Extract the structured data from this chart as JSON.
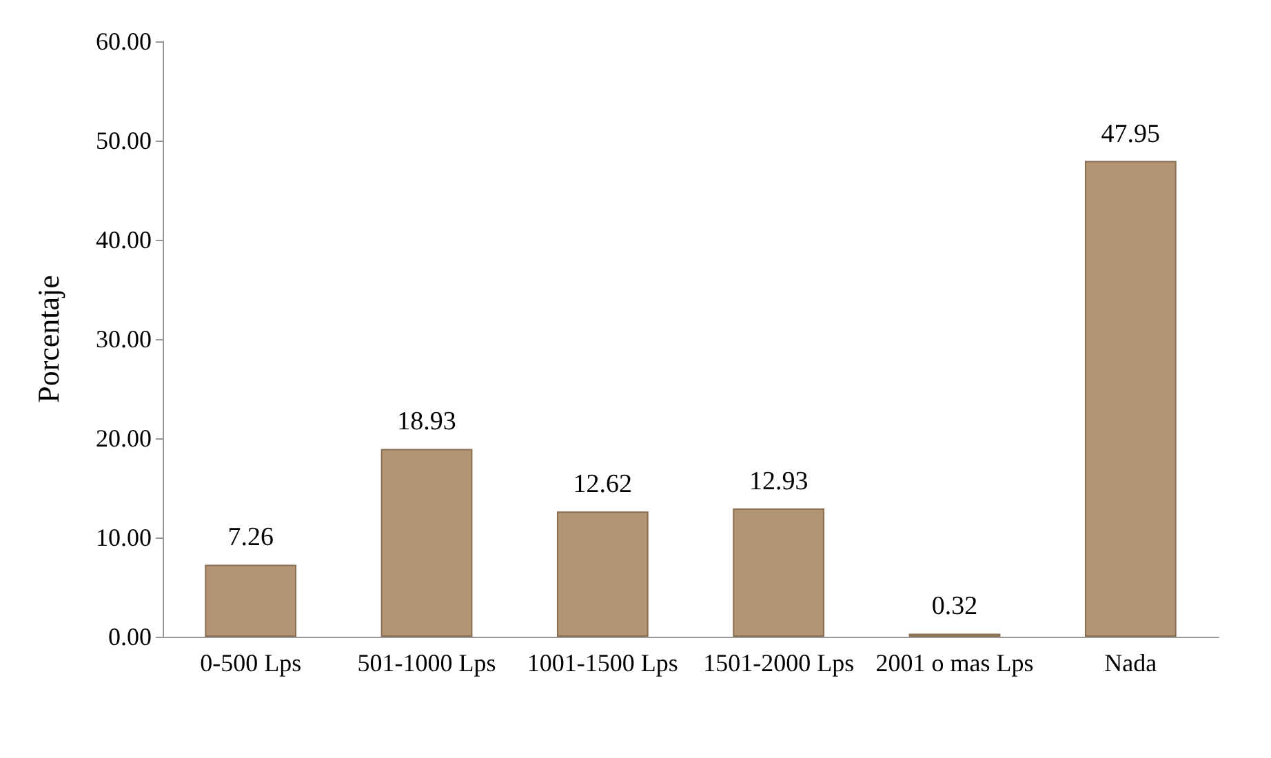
{
  "chart_data": {
    "type": "bar",
    "ylabel": "Porcentaje",
    "categories": [
      "0-500 Lps",
      "501-1000 Lps",
      "1001-1500 Lps",
      "1501-2000 Lps",
      "2001 o mas Lps",
      "Nada"
    ],
    "values": [
      7.26,
      18.93,
      12.62,
      12.93,
      0.32,
      47.95
    ],
    "color": "#b39573",
    "ylim": [
      0,
      60
    ],
    "yticks": [
      {
        "value": 0,
        "label": "0.00"
      },
      {
        "value": 10,
        "label": "10.00"
      },
      {
        "value": 20,
        "label": "20.00"
      },
      {
        "value": 30,
        "label": "30.00"
      },
      {
        "value": 40,
        "label": "40.00"
      },
      {
        "value": 50,
        "label": "50.00"
      },
      {
        "value": 60,
        "label": "60.00"
      }
    ],
    "data_labels": true,
    "grid": false
  }
}
